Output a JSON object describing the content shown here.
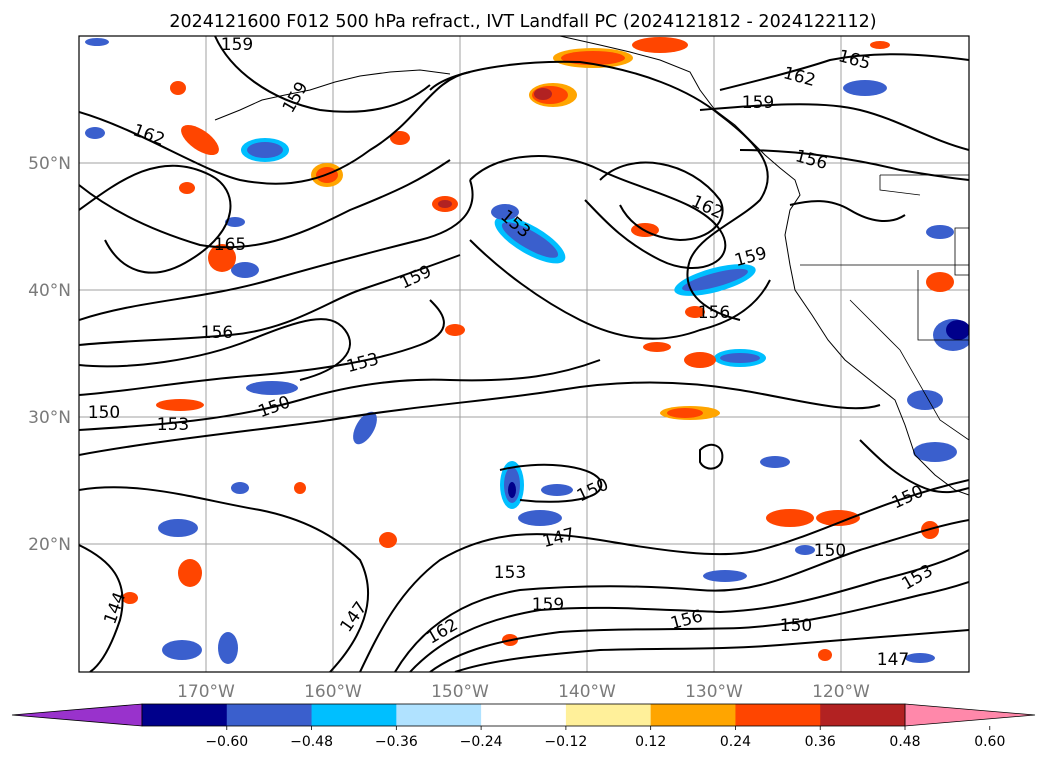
{
  "figure": {
    "title": "2024121600 F012 500 hPa refract., IVT Landfall PC (2024121812 - 2024122112)"
  },
  "map": {
    "lon_ticks": [
      "170°W",
      "160°W",
      "150°W",
      "140°W",
      "130°W",
      "120°W"
    ],
    "lat_ticks": [
      "50°N",
      "40°N",
      "30°N",
      "20°N"
    ],
    "grid": true
  },
  "contour_labels": [
    {
      "text": "159",
      "id": "c159-a"
    },
    {
      "text": "162",
      "id": "c162-a"
    },
    {
      "text": "165",
      "id": "c165-a"
    },
    {
      "text": "162",
      "id": "c162-b"
    },
    {
      "text": "159",
      "id": "c159-b"
    },
    {
      "text": "156",
      "id": "c156-a"
    },
    {
      "text": "162",
      "id": "c162-c"
    },
    {
      "text": "153",
      "id": "c153-a"
    },
    {
      "text": "159",
      "id": "c159-c"
    },
    {
      "text": "165",
      "id": "c165-b"
    },
    {
      "text": "159",
      "id": "c159-d"
    },
    {
      "text": "156",
      "id": "c156-b"
    },
    {
      "text": "156",
      "id": "c156-c"
    },
    {
      "text": "153",
      "id": "c153-b"
    },
    {
      "text": "150",
      "id": "c150-a"
    },
    {
      "text": "150",
      "id": "c150-b"
    },
    {
      "text": "153",
      "id": "c153-c"
    },
    {
      "text": "150",
      "id": "c150-c"
    },
    {
      "text": "147",
      "id": "c147-a"
    },
    {
      "text": "153",
      "id": "c153-d"
    },
    {
      "text": "159",
      "id": "c159-e"
    },
    {
      "text": "150",
      "id": "c150-d"
    },
    {
      "text": "150",
      "id": "c150-e"
    },
    {
      "text": "153",
      "id": "c153-e"
    },
    {
      "text": "144",
      "id": "c144-a"
    },
    {
      "text": "147",
      "id": "c147-b"
    },
    {
      "text": "162",
      "id": "c162-d"
    },
    {
      "text": "156",
      "id": "c156-d"
    },
    {
      "text": "150",
      "id": "c150-f"
    },
    {
      "text": "147",
      "id": "c147-c"
    },
    {
      "text": "159",
      "id": "c159-f"
    }
  ],
  "colorbar": {
    "colors": [
      "#9932cc",
      "#00008b",
      "#3a5fcd",
      "#00bfff",
      "#b0e2ff",
      "#ffffff",
      "#fff09a",
      "#ffa500",
      "#ff4500",
      "#b22222",
      "#ff88aa"
    ],
    "tick_labels": [
      "−0.60",
      "−0.48",
      "−0.36",
      "−0.24",
      "−0.12",
      "0.12",
      "0.24",
      "0.36",
      "0.48",
      "0.60"
    ]
  }
}
